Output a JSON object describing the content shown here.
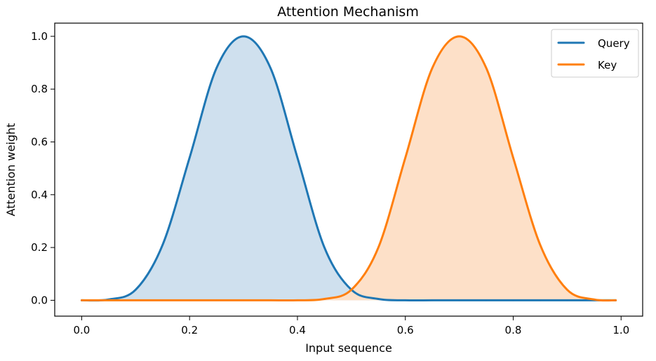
{
  "chart_data": {
    "type": "area",
    "title": "Attention Mechanism",
    "xlabel": "Input sequence",
    "ylabel": "Attention weight",
    "xlim": [
      -0.05,
      1.04
    ],
    "ylim": [
      -0.06,
      1.05
    ],
    "xticks": [
      "0.0",
      "0.2",
      "0.4",
      "0.6",
      "0.8",
      "1.0"
    ],
    "yticks": [
      "0.0",
      "0.2",
      "0.4",
      "0.6",
      "0.8",
      "1.0"
    ],
    "grid": false,
    "legend_position": "top-right",
    "x": [
      0.0,
      0.05,
      0.1,
      0.15,
      0.2,
      0.25,
      0.3,
      0.35,
      0.4,
      0.45,
      0.5,
      0.55,
      0.6,
      0.65,
      0.7,
      0.75,
      0.8,
      0.85,
      0.9,
      0.95,
      0.99
    ],
    "series": [
      {
        "name": "Query",
        "color": "#1f77b4",
        "fill_color": "#cfe0ee",
        "values": [
          0.0,
          0.003,
          0.04,
          0.21,
          0.54,
          0.88,
          1.0,
          0.88,
          0.54,
          0.2,
          0.04,
          0.005,
          0.0,
          0.0,
          0.0,
          0.0,
          0.0,
          0.0,
          0.0,
          0.0,
          0.0
        ]
      },
      {
        "name": "Key",
        "color": "#ff7f0e",
        "fill_color": "#fde0c8",
        "values": [
          0.0,
          0.0,
          0.0,
          0.0,
          0.0,
          0.0,
          0.0,
          0.0,
          0.0,
          0.005,
          0.04,
          0.2,
          0.54,
          0.88,
          1.0,
          0.88,
          0.54,
          0.21,
          0.04,
          0.003,
          0.0
        ]
      }
    ]
  }
}
